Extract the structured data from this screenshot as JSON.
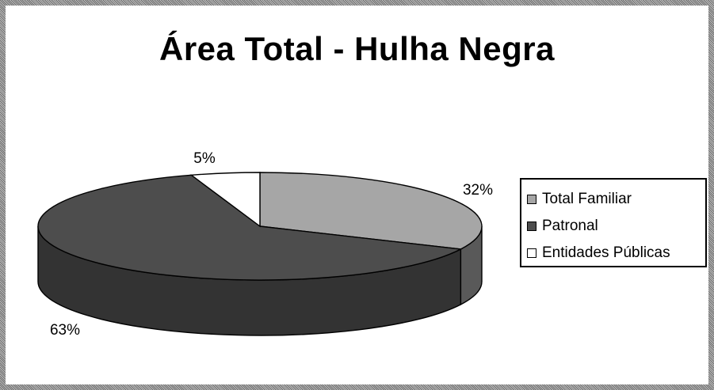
{
  "chart_data": {
    "type": "pie",
    "title": "Área Total - Hulha Negra",
    "legend_position": "right",
    "categories": [
      "Total Familiar",
      "Patronal",
      "Entidades Públicas"
    ],
    "values": [
      32,
      63,
      5
    ],
    "labels": [
      "32%",
      "63%",
      "5%"
    ],
    "colors": [
      "#a6a6a6",
      "#4d4d4d",
      "#ffffff"
    ],
    "side_colors": [
      "#595959",
      "#333333",
      "#d9d9d9"
    ]
  }
}
